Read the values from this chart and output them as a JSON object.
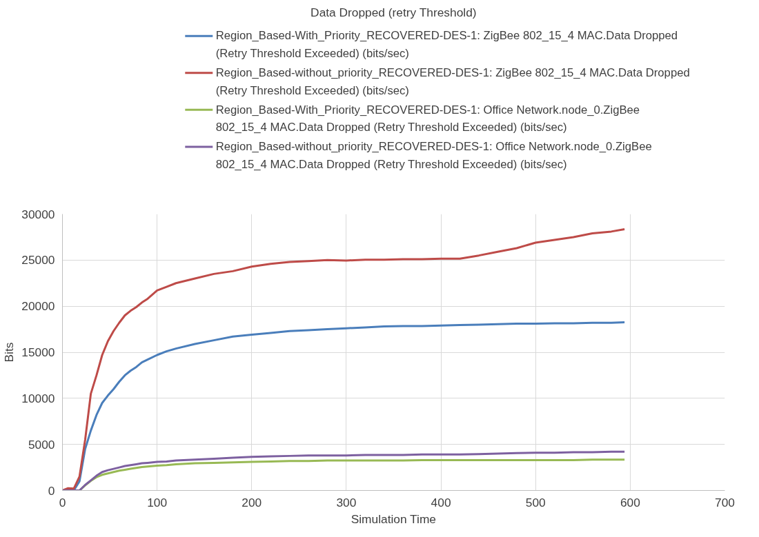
{
  "chart_data": {
    "type": "line",
    "title": "Data Dropped (retry Threshold)",
    "xlabel": "Simulation Time",
    "ylabel": "Bits",
    "x": [
      0,
      6,
      12,
      18,
      24,
      30,
      36,
      42,
      48,
      54,
      60,
      66,
      72,
      78,
      84,
      90,
      100,
      110,
      120,
      140,
      160,
      180,
      200,
      220,
      240,
      260,
      280,
      300,
      320,
      340,
      360,
      380,
      400,
      420,
      440,
      460,
      480,
      500,
      520,
      540,
      560,
      580,
      594
    ],
    "series": [
      {
        "name": "Region_Based-With_Priority_RECOVERED-DES-1: ZigBee 802_15_4 MAC.Data Dropped (Retry Threshold Exceeded) (bits/sec)",
        "color": "#4a7ebb",
        "values": [
          0,
          0,
          0,
          1000,
          4500,
          6500,
          8200,
          9500,
          10300,
          11000,
          11800,
          12500,
          13000,
          13400,
          13900,
          14200,
          14700,
          15100,
          15400,
          15900,
          16300,
          16700,
          16900,
          17100,
          17300,
          17400,
          17500,
          17600,
          17700,
          17800,
          17850,
          17850,
          17900,
          17950,
          18000,
          18050,
          18100,
          18100,
          18150,
          18150,
          18200,
          18200,
          18250
        ]
      },
      {
        "name": "Region_Based-without_priority_RECOVERED-DES-1: ZigBee 802_15_4 MAC.Data Dropped (Retry Threshold Exceeded) (bits/sec)",
        "color": "#be4b48",
        "values": [
          0,
          250,
          200,
          1500,
          5500,
          10500,
          12500,
          14700,
          16200,
          17300,
          18200,
          19000,
          19500,
          19900,
          20400,
          20800,
          21700,
          22100,
          22500,
          23000,
          23500,
          23800,
          24300,
          24600,
          24800,
          24900,
          25000,
          24950,
          25050,
          25050,
          25100,
          25100,
          25150,
          25150,
          25500,
          25900,
          26300,
          26900,
          27200,
          27500,
          27900,
          28100,
          28350
        ]
      },
      {
        "name": "Region_Based-With_Priority_RECOVERED-DES-1: Office Network.node_0.ZigBee 802_15_4 MAC.Data Dropped (Retry Threshold Exceeded) (bits/sec)",
        "color": "#98b954",
        "values": [
          null,
          null,
          null,
          0,
          550,
          1050,
          1450,
          1700,
          1850,
          2000,
          2150,
          2250,
          2350,
          2450,
          2550,
          2600,
          2700,
          2750,
          2850,
          2950,
          3000,
          3050,
          3100,
          3150,
          3200,
          3200,
          3250,
          3250,
          3250,
          3250,
          3250,
          3300,
          3300,
          3300,
          3300,
          3300,
          3300,
          3300,
          3300,
          3300,
          3350,
          3350,
          3350
        ]
      },
      {
        "name": "Region_Based-without_priority_RECOVERED-DES-1: Office Network.node_0.ZigBee 802_15_4 MAC.Data Dropped (Retry Threshold Exceeded) (bits/sec)",
        "color": "#7d60a0",
        "values": [
          0,
          0,
          0,
          0,
          600,
          1100,
          1600,
          2000,
          2200,
          2350,
          2500,
          2650,
          2750,
          2850,
          2950,
          3000,
          3100,
          3150,
          3250,
          3350,
          3450,
          3550,
          3650,
          3700,
          3750,
          3800,
          3800,
          3800,
          3850,
          3850,
          3850,
          3900,
          3900,
          3900,
          3950,
          4000,
          4050,
          4100,
          4100,
          4150,
          4150,
          4200,
          4200
        ]
      }
    ],
    "xlim": [
      0,
      700
    ],
    "xticks": [
      0,
      100,
      200,
      300,
      400,
      500,
      600,
      700
    ],
    "ylim": [
      0,
      30000
    ],
    "yticks": [
      0,
      5000,
      10000,
      15000,
      20000,
      25000,
      30000
    ],
    "grid": true,
    "legend": "top",
    "marker": "none",
    "line_style": "solid"
  }
}
